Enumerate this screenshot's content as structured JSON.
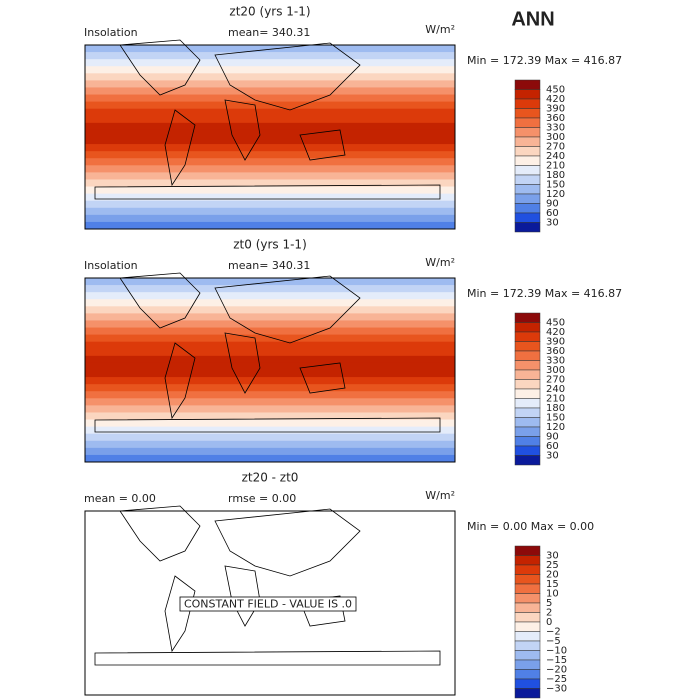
{
  "header": {
    "title": "ANN"
  },
  "panels": [
    {
      "title": "zt20 (yrs 1-1)",
      "left_label": "Insolation",
      "stat1": "mean= 340.31",
      "stat2": null,
      "units": "W/m²",
      "minmax": "Min = 172.39 Max = 416.87",
      "colorbar": {
        "labels": [
          "450",
          "420",
          "390",
          "360",
          "330",
          "300",
          "270",
          "240",
          "210",
          "180",
          "150",
          "120",
          "90",
          "60",
          "30"
        ],
        "colors": [
          "#8c0a0a",
          "#c42300",
          "#dc3a0a",
          "#e8551e",
          "#f07040",
          "#f5916a",
          "#f8b496",
          "#fbd6c0",
          "#fdf0e6",
          "#e4ecfa",
          "#c2d4f5",
          "#9ebbf0",
          "#7aa0ea",
          "#5080e6",
          "#2050e0",
          "#0a1a9a"
        ]
      },
      "note": null
    },
    {
      "title": "zt0 (yrs 1-1)",
      "left_label": "Insolation",
      "stat1": "mean= 340.31",
      "stat2": null,
      "units": "W/m²",
      "minmax": "Min = 172.39 Max = 416.87",
      "colorbar": {
        "labels": [
          "450",
          "420",
          "390",
          "360",
          "330",
          "300",
          "270",
          "240",
          "210",
          "180",
          "150",
          "120",
          "90",
          "60",
          "30"
        ],
        "colors": [
          "#8c0a0a",
          "#c42300",
          "#dc3a0a",
          "#e8551e",
          "#f07040",
          "#f5916a",
          "#f8b496",
          "#fbd6c0",
          "#fdf0e6",
          "#e4ecfa",
          "#c2d4f5",
          "#9ebbf0",
          "#7aa0ea",
          "#5080e6",
          "#2050e0",
          "#0a1a9a"
        ]
      },
      "note": null
    },
    {
      "title": "zt20 - zt0",
      "left_label": null,
      "stat1": "mean =    0.00",
      "stat2": "rmse =    0.00",
      "units": "W/m²",
      "minmax": "Min =   0.00 Max =   0.00",
      "colorbar": {
        "labels": [
          "30",
          "25",
          "20",
          "15",
          "10",
          "5",
          "2",
          "0",
          "−2",
          "−5",
          "−10",
          "−15",
          "−20",
          "−25",
          "−30"
        ],
        "colors": [
          "#8c0a0a",
          "#c42300",
          "#dc3a0a",
          "#e8551e",
          "#f07040",
          "#f5916a",
          "#f8b496",
          "#fbd6c0",
          "#fdf0e6",
          "#e4ecfa",
          "#c2d4f5",
          "#9ebbf0",
          "#7aa0ea",
          "#5080e6",
          "#2050e0",
          "#0a1a9a"
        ]
      },
      "note": "CONSTANT FIELD - VALUE IS .0"
    }
  ]
}
